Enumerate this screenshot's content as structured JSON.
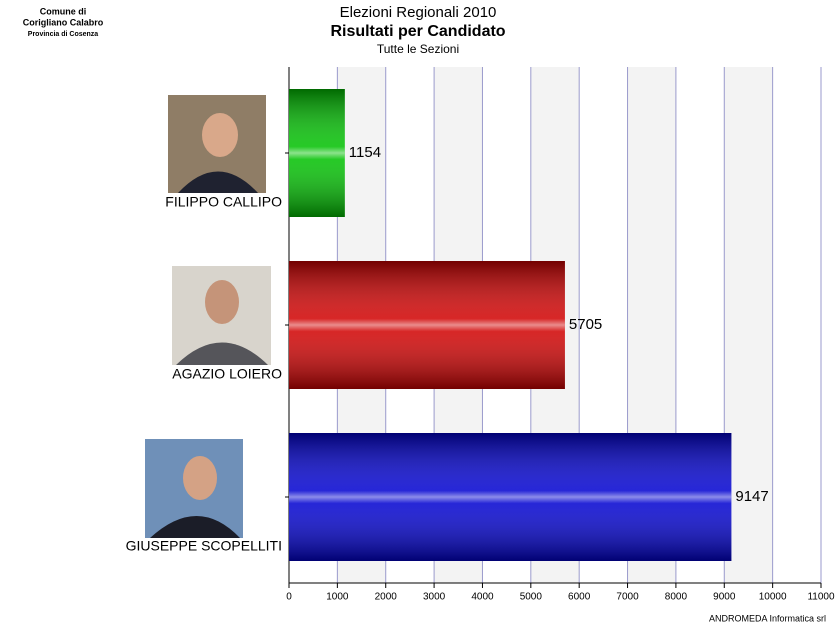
{
  "chart_data": {
    "type": "barh",
    "header": [
      "Comune di",
      "Corigliano Calabro",
      "Provincia di Cosenza"
    ],
    "title": "Elezioni Regionali 2010",
    "subtitle": "Risultati per Candidato",
    "caption": "Tutte le Sezioni",
    "footer": "ANDROMEDA Informatica srl",
    "categories": [
      "FILIPPO CALLIPO",
      "AGAZIO LOIERO",
      "GIUSEPPE SCOPELLITI"
    ],
    "values": [
      1154,
      5705,
      9147
    ],
    "colors": [
      "#00c000",
      "#d00000",
      "#0000d0"
    ],
    "xlim": [
      0,
      11000
    ],
    "xticks": [
      0,
      1000,
      2000,
      3000,
      4000,
      5000,
      6000,
      7000,
      8000,
      9000,
      10000,
      11000
    ],
    "grid": true
  }
}
